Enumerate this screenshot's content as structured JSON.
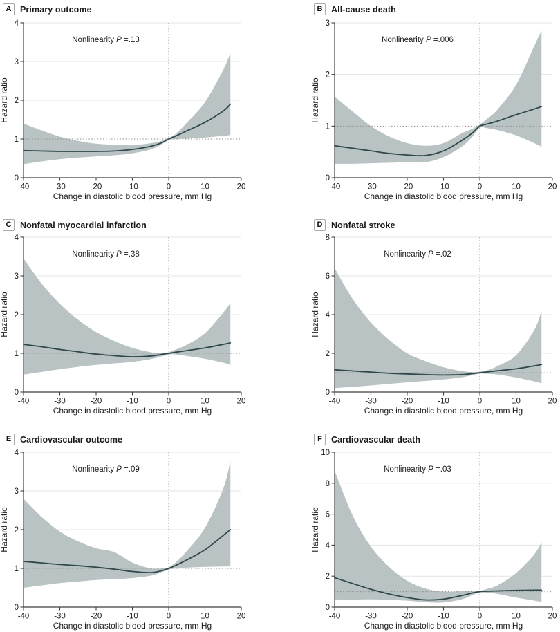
{
  "figure_meta": {
    "layout": "2x3 panel grid of restricted cubic spline hazard-ratio plots",
    "colors": {
      "band": "#b9c3c3",
      "line": "#2f484c",
      "grid": "#e4e4e4",
      "ref": "#8c8c8c",
      "axis": "#3f3f3f",
      "text": "#1c1c1c",
      "badge_border": "#a8acac",
      "background": "#ffffff"
    }
  },
  "chart_data": [
    {
      "type": "line",
      "panel_label": "A",
      "title": "Primary outcome",
      "annotation_prefix": "Nonlinearity ",
      "annotation_p": "P",
      "annotation_suffix": " =.13",
      "xlabel": "Change in diastolic blood pressure, mm Hg",
      "ylabel": "Hazard ratio",
      "xlim": [
        -40,
        20
      ],
      "ylim": [
        0,
        4
      ],
      "xticks": [
        -40,
        -30,
        -20,
        -10,
        0,
        10,
        20
      ],
      "yticks": [
        0,
        1,
        2,
        3,
        4
      ],
      "ref_line_y": 1,
      "ref_line_x": 0,
      "x": [
        -40,
        -35,
        -30,
        -25,
        -20,
        -15,
        -10,
        -5,
        -2,
        0,
        2,
        5,
        10,
        15,
        17
      ],
      "hr": [
        0.7,
        0.69,
        0.68,
        0.68,
        0.68,
        0.69,
        0.73,
        0.81,
        0.9,
        1.0,
        1.08,
        1.21,
        1.43,
        1.72,
        1.9
      ],
      "ci_lower": [
        0.35,
        0.42,
        0.48,
        0.52,
        0.55,
        0.58,
        0.63,
        0.73,
        0.86,
        0.97,
        1.0,
        1.01,
        1.04,
        1.08,
        1.1
      ],
      "ci_upper": [
        1.4,
        1.22,
        1.06,
        0.95,
        0.88,
        0.85,
        0.84,
        0.89,
        0.95,
        1.03,
        1.14,
        1.42,
        1.95,
        2.78,
        3.22
      ]
    },
    {
      "type": "line",
      "panel_label": "B",
      "title": "All-cause death",
      "annotation_prefix": "Nonlinearity ",
      "annotation_p": "P",
      "annotation_suffix": " =.006",
      "xlabel": "Change in diastolic blood pressure, mm Hg",
      "ylabel": "Hazard ratio",
      "xlim": [
        -40,
        20
      ],
      "ylim": [
        0,
        3
      ],
      "xticks": [
        -40,
        -30,
        -20,
        -10,
        0,
        10,
        20
      ],
      "yticks": [
        0,
        1,
        2,
        3
      ],
      "ref_line_y": 1,
      "ref_line_x": 0,
      "x": [
        -40,
        -35,
        -30,
        -25,
        -20,
        -15,
        -10,
        -5,
        -2,
        0,
        2,
        5,
        10,
        15,
        17
      ],
      "hr": [
        0.62,
        0.57,
        0.52,
        0.47,
        0.44,
        0.43,
        0.52,
        0.72,
        0.87,
        1.0,
        1.04,
        1.1,
        1.22,
        1.33,
        1.38
      ],
      "ci_lower": [
        0.27,
        0.27,
        0.28,
        0.29,
        0.3,
        0.3,
        0.4,
        0.6,
        0.8,
        0.97,
        0.96,
        0.92,
        0.82,
        0.67,
        0.6
      ],
      "ci_upper": [
        1.57,
        1.28,
        1.0,
        0.8,
        0.67,
        0.62,
        0.67,
        0.86,
        0.95,
        1.03,
        1.14,
        1.33,
        1.8,
        2.55,
        2.85
      ]
    },
    {
      "type": "line",
      "panel_label": "C",
      "title": "Nonfatal myocardial infarction",
      "annotation_prefix": "Nonlinearity ",
      "annotation_p": "P",
      "annotation_suffix": " =.38",
      "xlabel": "Change in diastolic blood pressure, mm Hg",
      "ylabel": "Hazard ratio",
      "xlim": [
        -40,
        20
      ],
      "ylim": [
        0,
        4
      ],
      "xticks": [
        -40,
        -30,
        -20,
        -10,
        0,
        10,
        20
      ],
      "yticks": [
        0,
        1,
        2,
        3,
        4
      ],
      "ref_line_y": 1,
      "ref_line_x": 0,
      "x": [
        -40,
        -35,
        -30,
        -25,
        -20,
        -15,
        -10,
        -5,
        -2,
        0,
        2,
        5,
        10,
        15,
        17
      ],
      "hr": [
        1.23,
        1.17,
        1.1,
        1.04,
        0.98,
        0.94,
        0.91,
        0.93,
        0.97,
        1.0,
        1.03,
        1.07,
        1.14,
        1.23,
        1.27
      ],
      "ci_lower": [
        0.45,
        0.52,
        0.59,
        0.65,
        0.7,
        0.74,
        0.78,
        0.85,
        0.92,
        0.97,
        0.97,
        0.93,
        0.86,
        0.76,
        0.7
      ],
      "ci_upper": [
        3.45,
        2.8,
        2.28,
        1.87,
        1.55,
        1.32,
        1.14,
        1.03,
        1.0,
        1.03,
        1.1,
        1.22,
        1.52,
        2.05,
        2.3
      ]
    },
    {
      "type": "line",
      "panel_label": "D",
      "title": "Nonfatal stroke",
      "annotation_prefix": "Nonlinearity ",
      "annotation_p": "P",
      "annotation_suffix": " =.02",
      "xlabel": "Change in diastolic blood pressure, mm Hg",
      "ylabel": "Hazard ratio",
      "xlim": [
        -40,
        20
      ],
      "ylim": [
        0,
        8
      ],
      "xticks": [
        -40,
        -30,
        -20,
        -10,
        0,
        10,
        20
      ],
      "yticks": [
        0,
        2,
        4,
        6,
        8
      ],
      "ref_line_y": 1,
      "ref_line_x": 0,
      "x": [
        -40,
        -35,
        -30,
        -25,
        -20,
        -15,
        -10,
        -5,
        -2,
        0,
        2,
        5,
        10,
        15,
        17
      ],
      "hr": [
        1.15,
        1.09,
        1.03,
        0.97,
        0.93,
        0.9,
        0.88,
        0.9,
        0.95,
        1.0,
        1.04,
        1.1,
        1.2,
        1.35,
        1.42
      ],
      "ci_lower": [
        0.2,
        0.27,
        0.34,
        0.42,
        0.5,
        0.57,
        0.65,
        0.76,
        0.87,
        0.95,
        0.94,
        0.9,
        0.75,
        0.55,
        0.45
      ],
      "ci_upper": [
        6.4,
        4.8,
        3.6,
        2.7,
        2.0,
        1.6,
        1.28,
        1.08,
        1.03,
        1.05,
        1.12,
        1.35,
        1.9,
        3.2,
        4.2
      ]
    },
    {
      "type": "line",
      "panel_label": "E",
      "title": "Cardiovascular outcome",
      "annotation_prefix": "Nonlinearity ",
      "annotation_p": "P",
      "annotation_suffix": " =.09",
      "xlabel": "Change in diastolic blood pressure, mm Hg",
      "ylabel": "Hazard ratio",
      "xlim": [
        -40,
        20
      ],
      "ylim": [
        0,
        4
      ],
      "xticks": [
        -40,
        -30,
        -20,
        -10,
        0,
        10,
        20
      ],
      "yticks": [
        0,
        1,
        2,
        3,
        4
      ],
      "ref_line_y": 1,
      "ref_line_x": 0,
      "x": [
        -40,
        -35,
        -30,
        -25,
        -20,
        -15,
        -10,
        -5,
        -2,
        0,
        2,
        5,
        10,
        15,
        17
      ],
      "hr": [
        1.18,
        1.14,
        1.1,
        1.07,
        1.03,
        0.98,
        0.92,
        0.89,
        0.94,
        1.0,
        1.08,
        1.22,
        1.48,
        1.85,
        2.0
      ],
      "ci_lower": [
        0.5,
        0.56,
        0.62,
        0.66,
        0.7,
        0.72,
        0.75,
        0.81,
        0.9,
        0.97,
        1.0,
        1.02,
        1.04,
        1.05,
        1.05
      ],
      "ci_upper": [
        2.8,
        2.33,
        1.95,
        1.7,
        1.52,
        1.42,
        1.15,
        1.0,
        1.0,
        1.03,
        1.16,
        1.45,
        2.05,
        3.05,
        3.78
      ]
    },
    {
      "type": "line",
      "panel_label": "F",
      "title": "Cardiovascular death",
      "annotation_prefix": "Nonlinearity ",
      "annotation_p": "P",
      "annotation_suffix": " =.03",
      "xlabel": "Change in diastolic blood pressure, mm Hg",
      "ylabel": "Hazard ratio",
      "xlim": [
        -40,
        20
      ],
      "ylim": [
        0,
        10
      ],
      "xticks": [
        -40,
        -30,
        -20,
        -10,
        0,
        10,
        20
      ],
      "yticks": [
        0,
        2,
        4,
        6,
        8,
        10
      ],
      "ref_line_y": 1,
      "ref_line_x": 0,
      "x": [
        -40,
        -35,
        -30,
        -25,
        -20,
        -15,
        -10,
        -5,
        -2,
        0,
        2,
        5,
        10,
        15,
        17
      ],
      "hr": [
        1.9,
        1.52,
        1.15,
        0.85,
        0.62,
        0.47,
        0.52,
        0.75,
        0.92,
        1.0,
        1.03,
        1.05,
        1.08,
        1.1,
        1.1
      ],
      "ci_lower": [
        0.45,
        0.48,
        0.5,
        0.47,
        0.42,
        0.32,
        0.3,
        0.5,
        0.78,
        0.95,
        0.92,
        0.85,
        0.62,
        0.42,
        0.35
      ],
      "ci_upper": [
        8.8,
        5.9,
        3.9,
        2.6,
        1.7,
        1.2,
        1.0,
        1.02,
        1.02,
        1.05,
        1.18,
        1.42,
        2.2,
        3.4,
        4.2
      ]
    }
  ]
}
